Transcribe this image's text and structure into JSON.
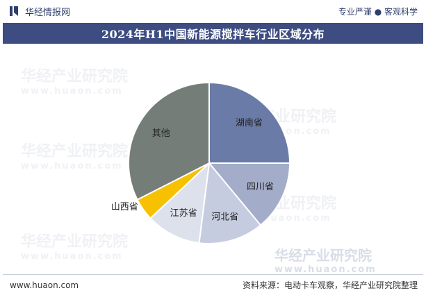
{
  "header": {
    "brand": "华经情报网",
    "tagline": "专业严谨 ● 客观科学"
  },
  "title": "2024年H1中国新能源搅拌车行业区域分布",
  "watermark": {
    "text": "华经产业研究院",
    "url": "www.huaon.com"
  },
  "footer": {
    "website": "www.huaon.com",
    "source": "资料来源：电动卡车观察，华经产业研究院整理"
  },
  "colors": {
    "title_bg": "#3d4d82",
    "brand": "#2f3e6b"
  },
  "chart_data": {
    "type": "pie",
    "title": "2024年H1中国新能源搅拌车行业区域分布",
    "start_angle": "12 o'clock",
    "direction": "clockwise",
    "labels_inside": true,
    "slices": [
      {
        "label": "湖南省",
        "value": 25.0,
        "color": "#6b7ba8"
      },
      {
        "label": "四川省",
        "value": 14.0,
        "color": "#a3adc9"
      },
      {
        "label": "河北省",
        "value": 13.0,
        "color": "#c5cce0"
      },
      {
        "label": "江苏省",
        "value": 11.0,
        "color": "#dde1ec"
      },
      {
        "label": "山西省",
        "value": 4.5,
        "color": "#f7c000"
      },
      {
        "label": "其他",
        "value": 32.5,
        "color": "#757d79"
      }
    ]
  }
}
